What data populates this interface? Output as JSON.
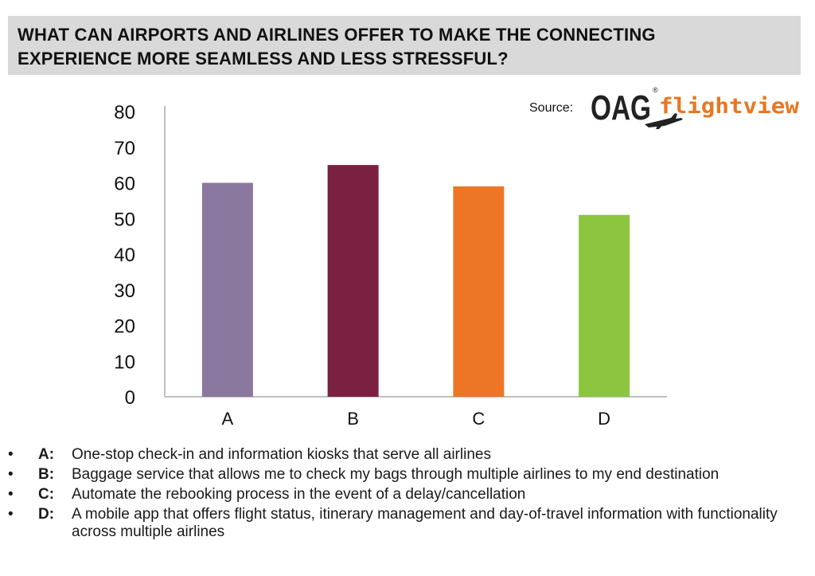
{
  "title": {
    "line1": "WHAT CAN AIRPORTS AND AIRLINES OFFER TO MAKE THE CONNECTING",
    "line2": "EXPERIENCE MORE SEAMLESS AND LESS STRESSFUL?"
  },
  "source": {
    "label": "Source:",
    "logo_text_main": "OAG",
    "logo_text_brand": "flightview",
    "logo_icon": "airplane-icon"
  },
  "colors": {
    "title_band": "#d9d9d9",
    "logo_dark": "#222222",
    "logo_orange": "#e87722"
  },
  "chart_data": {
    "type": "bar",
    "categories": [
      "A",
      "B",
      "C",
      "D"
    ],
    "values": [
      60,
      65,
      59,
      51
    ],
    "colors": [
      "#8a789e",
      "#7a2040",
      "#ec7626",
      "#8cc63f"
    ],
    "ylim": [
      0,
      80
    ],
    "yticks": [
      0,
      10,
      20,
      30,
      40,
      50,
      60,
      70,
      80
    ],
    "grid": false,
    "xlabel": "",
    "ylabel": ""
  },
  "legend": [
    {
      "bullet": "•",
      "key": "A:",
      "text": "One-stop check-in and information kiosks that serve all airlines"
    },
    {
      "bullet": "•",
      "key": "B:",
      "text": "Baggage service that allows me to check my bags through multiple airlines to my end destination"
    },
    {
      "bullet": "•",
      "key": "C:",
      "text": "Automate the rebooking process in the event of a delay/cancellation"
    },
    {
      "bullet": "•",
      "key": "D:",
      "text": "A mobile app that offers flight status, itinerary management and day-of-travel information with functionality across multiple airlines"
    }
  ]
}
